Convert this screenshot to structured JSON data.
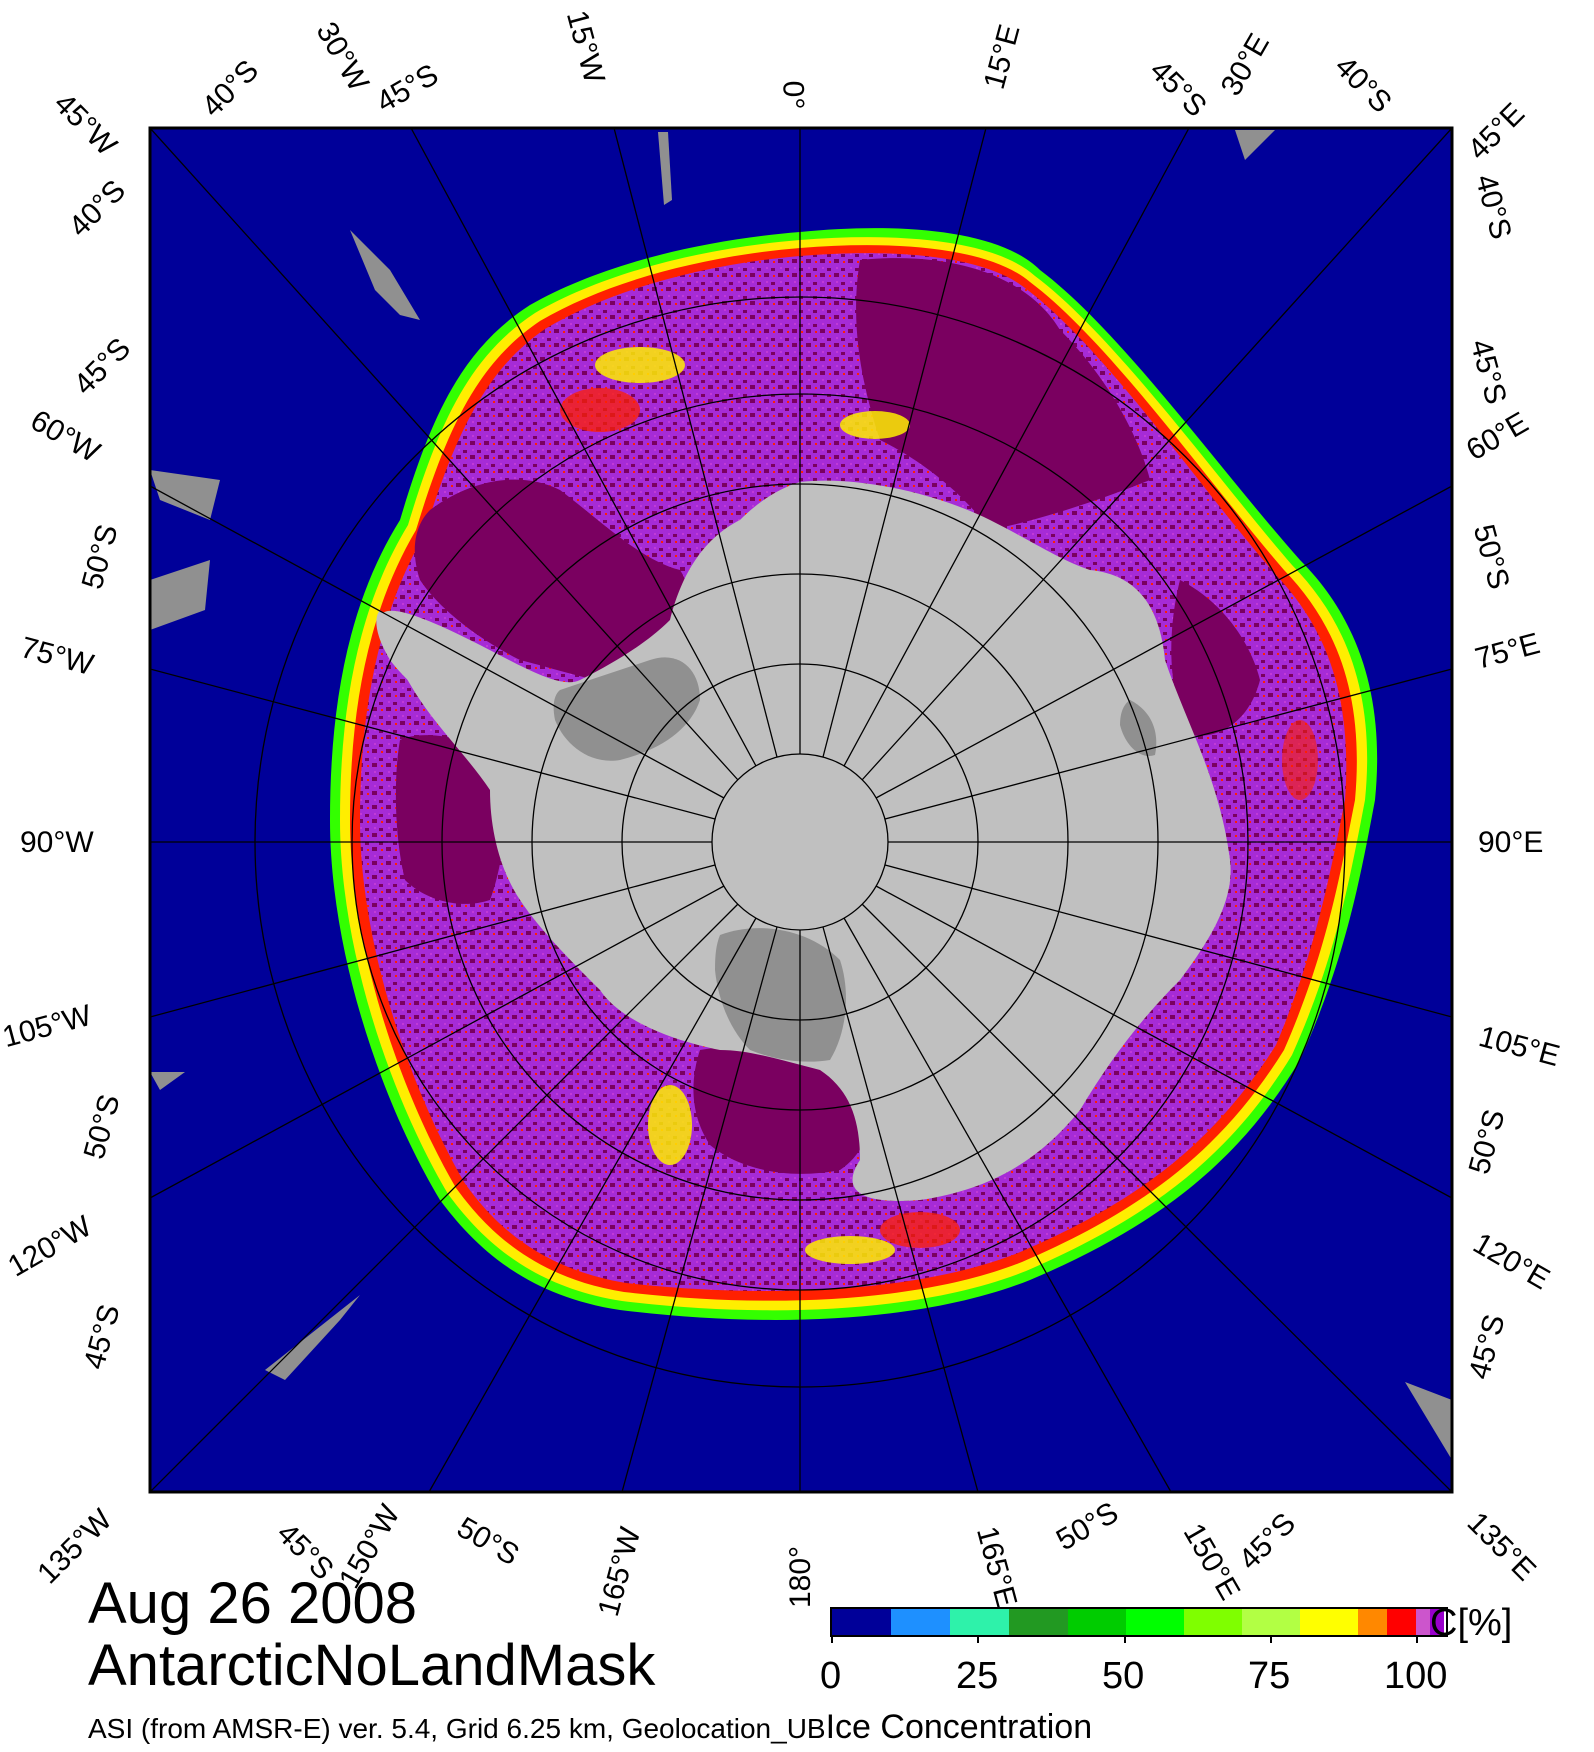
{
  "map": {
    "date": "Aug 26 2008",
    "name": "AntarcticNoLandMask",
    "footer": "ASI (from AMSR-E) ver. 5.4,  Grid 6.25 km, Geolocation_UB",
    "product": "Ice Concentration",
    "colors": {
      "ocean": "#000099",
      "land": "#c0c0c0",
      "ice_shelf": "#909090",
      "ice_dense": "#7a0060",
      "ice_purple": "#a62bd6",
      "ice_red": "#ff2000",
      "ice_yellow": "#ffee00",
      "ice_green": "#33ff00"
    }
  },
  "labels": {
    "lon_top": [
      "45°W",
      "30°W",
      "15°W",
      "0°",
      "15°E",
      "30°E",
      "45°E"
    ],
    "lat_top": [
      "40°S",
      "45°S",
      "45°S",
      "40°S"
    ],
    "lon_right": [
      "45°E",
      "60°E",
      "75°E",
      "90°E",
      "105°E",
      "120°E",
      "135°E"
    ],
    "lat_right": [
      "40°S",
      "45°S",
      "50°S",
      "50°S",
      "45°S"
    ],
    "lon_left": [
      "45°W",
      "60°W",
      "75°W",
      "90°W",
      "105°W",
      "120°W",
      "135°W"
    ],
    "lat_left": [
      "40°S",
      "45°S",
      "50°S",
      "50°S",
      "45°S"
    ],
    "lon_bottom": [
      "135°W",
      "150°W",
      "165°W",
      "180°",
      "165°E",
      "150°E",
      "135°E"
    ],
    "lat_bottom": [
      "45°S",
      "50°S",
      "50°S",
      "45°S"
    ]
  },
  "legend": {
    "title": "C[%]",
    "tick_labels": [
      "0",
      "25",
      "50",
      "75",
      "100"
    ],
    "colors": [
      "#000099",
      "#1e90ff",
      "#2ef2aa",
      "#229922",
      "#00cc00",
      "#00ff00",
      "#7fff00",
      "#b2ff44",
      "#ffff00",
      "#ff8800",
      "#ff0000",
      "#cc55cc",
      "#9900cc"
    ]
  }
}
